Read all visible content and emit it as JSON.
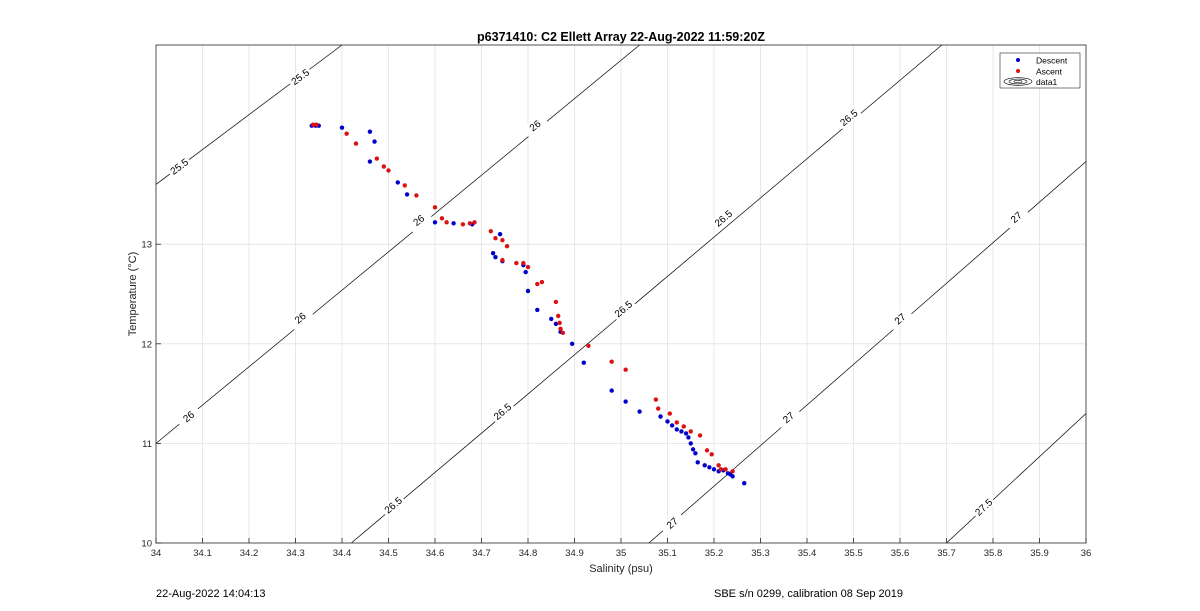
{
  "footer": {
    "timestamp": "22-Aug-2022 14:04:13",
    "instrument": "SBE s/n 0299, calibration 08 Sep 2019"
  },
  "chart_data": {
    "type": "scatter",
    "title": "p6371410: C2 Ellett Array 22-Aug-2022 11:59:20Z",
    "xlabel": "Salinity (psu)",
    "ylabel": "Temperature (°C)",
    "xlim": [
      34,
      36
    ],
    "ylim": [
      10,
      15
    ],
    "x_ticks": [
      34,
      34.1,
      34.2,
      34.3,
      34.4,
      34.5,
      34.6,
      34.7,
      34.8,
      34.9,
      35,
      35.1,
      35.2,
      35.3,
      35.4,
      35.5,
      35.6,
      35.7,
      35.8,
      35.9,
      36
    ],
    "y_ticks": [
      10,
      11,
      12,
      13
    ],
    "grid": true,
    "legend": {
      "placement": "top-right",
      "entries": [
        "Descent",
        "Ascent",
        "data1"
      ]
    },
    "colors": {
      "descent": "#0000cc",
      "ascent": "#dd1111",
      "contour": "#000000",
      "grid": "#e2e2e2"
    },
    "series": [
      {
        "name": "Descent",
        "points": [
          [
            34.335,
            14.19
          ],
          [
            34.343,
            14.19
          ],
          [
            34.35,
            14.19
          ],
          [
            34.4,
            14.17
          ],
          [
            34.46,
            14.13
          ],
          [
            34.47,
            14.03
          ],
          [
            34.46,
            13.83
          ],
          [
            34.52,
            13.62
          ],
          [
            34.54,
            13.5
          ],
          [
            34.6,
            13.22
          ],
          [
            34.64,
            13.21
          ],
          [
            34.68,
            13.2
          ],
          [
            34.725,
            12.91
          ],
          [
            34.73,
            12.87
          ],
          [
            34.74,
            13.1
          ],
          [
            34.745,
            12.83
          ],
          [
            34.79,
            12.79
          ],
          [
            34.795,
            12.72
          ],
          [
            34.8,
            12.53
          ],
          [
            34.82,
            12.34
          ],
          [
            34.85,
            12.25
          ],
          [
            34.86,
            12.2
          ],
          [
            34.87,
            12.12
          ],
          [
            34.895,
            12.0
          ],
          [
            34.92,
            11.81
          ],
          [
            34.98,
            11.53
          ],
          [
            35.01,
            11.42
          ],
          [
            35.04,
            11.32
          ],
          [
            35.085,
            11.27
          ],
          [
            35.1,
            11.22
          ],
          [
            35.11,
            11.18
          ],
          [
            35.12,
            11.14
          ],
          [
            35.13,
            11.12
          ],
          [
            35.14,
            11.1
          ],
          [
            35.145,
            11.06
          ],
          [
            35.15,
            11.0
          ],
          [
            35.155,
            10.94
          ],
          [
            35.16,
            10.9
          ],
          [
            35.165,
            10.81
          ],
          [
            35.18,
            10.78
          ],
          [
            35.19,
            10.76
          ],
          [
            35.2,
            10.74
          ],
          [
            35.21,
            10.72
          ],
          [
            35.22,
            10.73
          ],
          [
            35.23,
            10.7
          ],
          [
            35.235,
            10.69
          ],
          [
            35.24,
            10.67
          ],
          [
            35.265,
            10.6
          ]
        ]
      },
      {
        "name": "Ascent",
        "points": [
          [
            34.338,
            14.2
          ],
          [
            34.345,
            14.2
          ],
          [
            34.41,
            14.11
          ],
          [
            34.43,
            14.01
          ],
          [
            34.475,
            13.86
          ],
          [
            34.49,
            13.78
          ],
          [
            34.5,
            13.74
          ],
          [
            34.535,
            13.59
          ],
          [
            34.56,
            13.49
          ],
          [
            34.6,
            13.37
          ],
          [
            34.615,
            13.26
          ],
          [
            34.625,
            13.22
          ],
          [
            34.66,
            13.2
          ],
          [
            34.675,
            13.21
          ],
          [
            34.685,
            13.22
          ],
          [
            34.72,
            13.13
          ],
          [
            34.73,
            13.06
          ],
          [
            34.745,
            13.04
          ],
          [
            34.745,
            12.84
          ],
          [
            34.755,
            12.98
          ],
          [
            34.775,
            12.81
          ],
          [
            34.79,
            12.81
          ],
          [
            34.8,
            12.77
          ],
          [
            34.82,
            12.6
          ],
          [
            34.83,
            12.62
          ],
          [
            34.86,
            12.42
          ],
          [
            34.865,
            12.28
          ],
          [
            34.868,
            12.21
          ],
          [
            34.87,
            12.15
          ],
          [
            34.875,
            12.11
          ],
          [
            34.93,
            11.98
          ],
          [
            34.98,
            11.82
          ],
          [
            35.01,
            11.74
          ],
          [
            35.075,
            11.44
          ],
          [
            35.08,
            11.35
          ],
          [
            35.105,
            11.3
          ],
          [
            35.12,
            11.21
          ],
          [
            35.135,
            11.17
          ],
          [
            35.15,
            11.12
          ],
          [
            35.17,
            11.08
          ],
          [
            35.185,
            10.93
          ],
          [
            35.195,
            10.89
          ],
          [
            35.21,
            10.78
          ],
          [
            35.215,
            10.74
          ],
          [
            35.225,
            10.74
          ],
          [
            35.24,
            10.72
          ]
        ]
      }
    ],
    "contours": [
      {
        "label": "25.5",
        "points": [
          [
            34.0,
            13.6
          ],
          [
            34.4,
            15.0
          ]
        ],
        "label_positions": [
          [
            34.05,
            13.78
          ],
          [
            34.31,
            14.68
          ]
        ]
      },
      {
        "label": "26",
        "points": [
          [
            34.0,
            11.0
          ],
          [
            35.04,
            15.0
          ]
        ],
        "label_positions": [
          [
            34.07,
            11.27
          ],
          [
            34.31,
            12.26
          ],
          [
            34.565,
            13.24
          ],
          [
            34.815,
            14.19
          ]
        ]
      },
      {
        "label": "26.5",
        "points": [
          [
            34.42,
            10.0
          ],
          [
            35.69,
            15.0
          ]
        ],
        "label_positions": [
          [
            34.51,
            10.38
          ],
          [
            34.745,
            11.32
          ],
          [
            35.005,
            12.35
          ],
          [
            35.22,
            13.26
          ],
          [
            35.49,
            14.27
          ]
        ]
      },
      {
        "label": "27",
        "points": [
          [
            35.06,
            10.0
          ],
          [
            36.0,
            13.83
          ]
        ],
        "label_positions": [
          [
            35.11,
            10.2
          ],
          [
            35.36,
            11.26
          ],
          [
            35.6,
            12.25
          ],
          [
            35.85,
            13.27
          ]
        ]
      },
      {
        "label": "27.5",
        "points": [
          [
            35.7,
            10.0
          ],
          [
            36.0,
            11.3
          ]
        ],
        "label_positions": [
          [
            35.78,
            10.36
          ]
        ]
      }
    ]
  }
}
